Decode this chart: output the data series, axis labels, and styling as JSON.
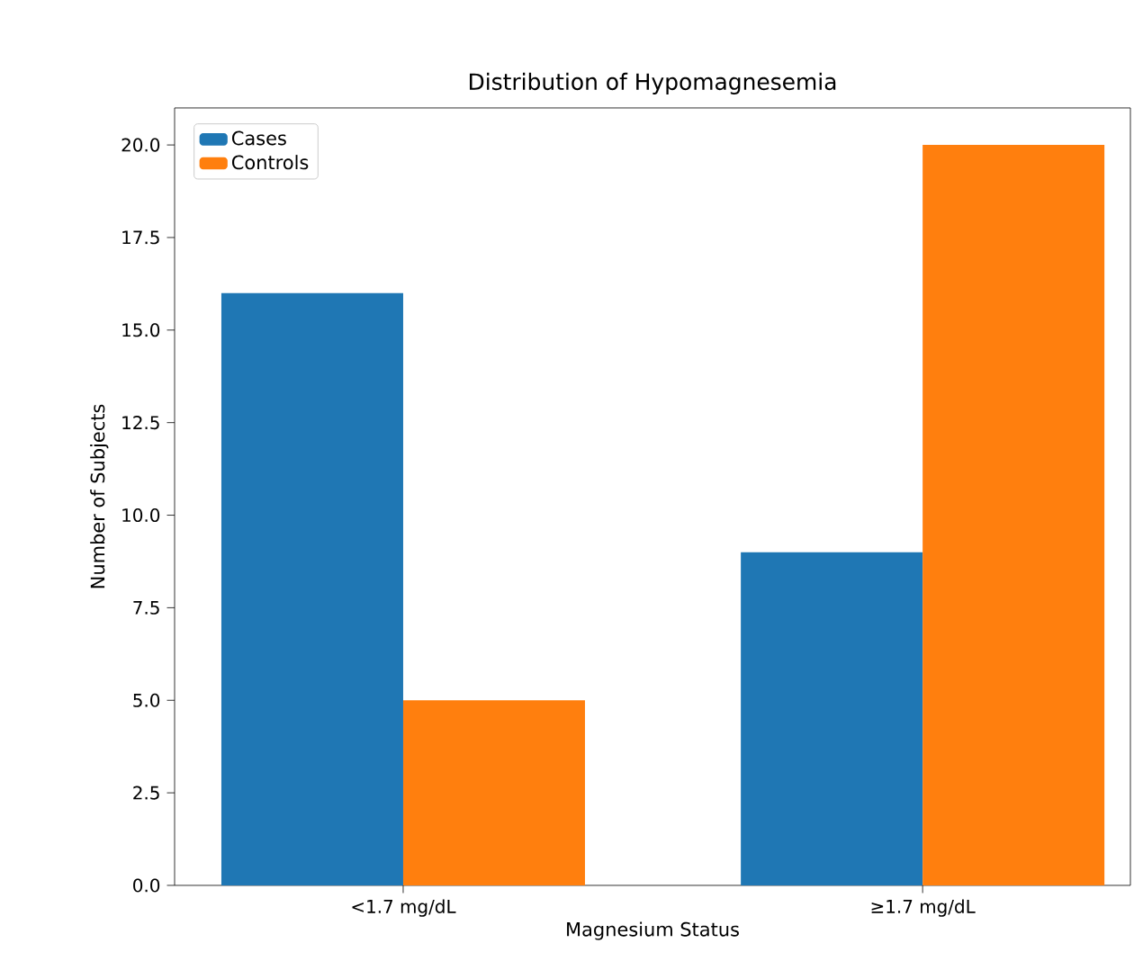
{
  "chart_data": {
    "type": "bar",
    "title": "Distribution of Hypomagnesemia",
    "xlabel": "Magnesium Status",
    "ylabel": "Number of Subjects",
    "categories": [
      "<1.7 mg/dL",
      "≥1.7 mg/dL"
    ],
    "series": [
      {
        "name": "Cases",
        "color": "#1f77b4",
        "values": [
          16,
          9
        ]
      },
      {
        "name": "Controls",
        "color": "#ff7f0e",
        "values": [
          5,
          20
        ]
      }
    ],
    "ylim": [
      0,
      21
    ],
    "yticks": [
      {
        "value": 0,
        "label": "0.0"
      },
      {
        "value": 2.5,
        "label": "2.5"
      },
      {
        "value": 5,
        "label": "5.0"
      },
      {
        "value": 7.5,
        "label": "7.5"
      },
      {
        "value": 10,
        "label": "10.0"
      },
      {
        "value": 12.5,
        "label": "12.5"
      },
      {
        "value": 15,
        "label": "15.0"
      },
      {
        "value": 17.5,
        "label": "17.5"
      },
      {
        "value": 20,
        "label": "20.0"
      }
    ],
    "legend": "top left",
    "grid": false
  }
}
